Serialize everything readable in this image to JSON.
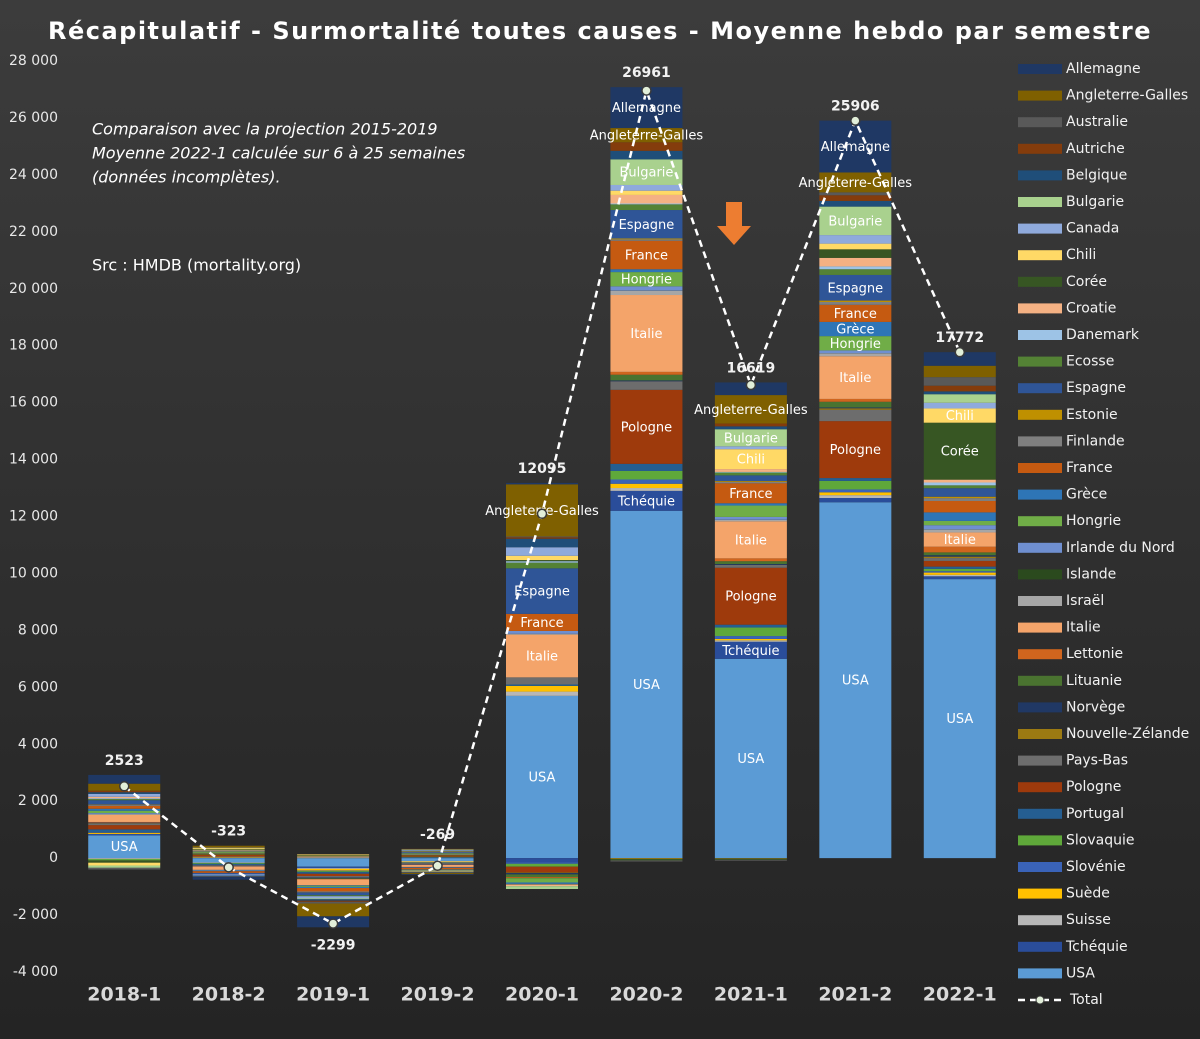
{
  "chart_data": {
    "type": "bar",
    "stacked": true,
    "title": "Récapitulatif - Surmortalité toutes causes - Moyenne hebdo par semestre",
    "annotations": [
      "Comparaison avec la projection 2015-2019",
      "Moyenne 2022-1 calculée sur 6 à 25 semaines",
      "(données incomplètes).",
      "Src : HMDB (mortality.org)"
    ],
    "categories": [
      "2018-1",
      "2018-2",
      "2019-1",
      "2019-2",
      "2020-1",
      "2020-2",
      "2021-1",
      "2021-2",
      "2022-1"
    ],
    "ylim": [
      -4000,
      28000
    ],
    "yticks": [
      {
        "value": -4000,
        "label": "-4 000"
      },
      {
        "value": -2000,
        "label": "-2 000"
      },
      0,
      {
        "value": 2000,
        "label": "2 000"
      },
      {
        "value": 4000,
        "label": "4 000"
      },
      {
        "value": 6000,
        "label": "6 000"
      },
      {
        "value": 8000,
        "label": "8 000"
      },
      {
        "value": 10000,
        "label": "10 000"
      },
      {
        "value": 12000,
        "label": "12 000"
      },
      {
        "value": 14000,
        "label": "14 000"
      },
      {
        "value": 16000,
        "label": "16 000"
      },
      {
        "value": 18000,
        "label": "18 000"
      },
      {
        "value": 20000,
        "label": "20 000"
      },
      {
        "value": 22000,
        "label": "22 000"
      },
      {
        "value": 24000,
        "label": "24 000"
      },
      {
        "value": 26000,
        "label": "26 000"
      },
      {
        "value": 28000,
        "label": "28 000"
      }
    ],
    "grid": false,
    "legend": "right",
    "series": [
      {
        "name": "Allemagne",
        "color": "#1f3864",
        "values": [
          308,
          -93,
          -384,
          -29,
          50,
          1436,
          444,
          1821,
          477
        ]
      },
      {
        "name": "Angleterre-Galles",
        "color": "#7f6000",
        "values": [
          250,
          50,
          -450,
          -40,
          1830,
          500,
          1000,
          700,
          400
        ]
      },
      {
        "name": "Australie",
        "color": "#595959",
        "values": [
          -60,
          -25,
          -60,
          -30,
          30,
          -40,
          -30,
          100,
          300
        ]
      },
      {
        "name": "Autriche",
        "color": "#843c0c",
        "values": [
          50,
          15,
          -40,
          15,
          50,
          300,
          100,
          200,
          200
        ]
      },
      {
        "name": "Belgique",
        "color": "#1f4e79",
        "values": [
          60,
          -30,
          -50,
          -20,
          300,
          300,
          100,
          200,
          100
        ]
      },
      {
        "name": "Bulgarie",
        "color": "#a9d18e",
        "values": [
          -80,
          20,
          -30,
          20,
          -100,
          900,
          600,
          1000,
          300
        ]
      },
      {
        "name": "Canada",
        "color": "#8faadc",
        "values": [
          100,
          -40,
          -60,
          30,
          300,
          200,
          100,
          300,
          200
        ]
      },
      {
        "name": "Chili",
        "color": "#ffd966",
        "values": [
          -100,
          40,
          30,
          -30,
          150,
          150,
          700,
          200,
          500
        ]
      },
      {
        "name": "Corée",
        "color": "#375623",
        "values": [
          -60,
          30,
          40,
          30,
          40,
          -50,
          -40,
          300,
          2000
        ]
      },
      {
        "name": "Croatie",
        "color": "#f4b183",
        "values": [
          50,
          20,
          30,
          20,
          -50,
          300,
          100,
          300,
          100
        ]
      },
      {
        "name": "Danemark",
        "color": "#9dc3e6",
        "values": [
          30,
          15,
          -20,
          -15,
          50,
          30,
          20,
          100,
          100
        ]
      },
      {
        "name": "Ecosse",
        "color": "#548235",
        "values": [
          40,
          10,
          -30,
          -20,
          200,
          200,
          100,
          200,
          100
        ]
      },
      {
        "name": "Espagne",
        "color": "#2f5597",
        "values": [
          150,
          -50,
          -100,
          40,
          1600,
          1000,
          200,
          900,
          300
        ]
      },
      {
        "name": "Estonie",
        "color": "#bf9000",
        "values": [
          10,
          5,
          -5,
          5,
          -10,
          30,
          30,
          50,
          50
        ]
      },
      {
        "name": "Finlande",
        "color": "#7f7f7f",
        "values": [
          40,
          20,
          -30,
          -20,
          -20,
          50,
          50,
          100,
          100
        ]
      },
      {
        "name": "France",
        "color": "#c55a11",
        "values": [
          100,
          -60,
          -120,
          -50,
          600,
          1000,
          700,
          600,
          400
        ]
      },
      {
        "name": "Grèce",
        "color": "#2e75b6",
        "values": [
          70,
          -30,
          -40,
          -20,
          -50,
          100,
          80,
          500,
          300
        ]
      },
      {
        "name": "Hongrie",
        "color": "#70ad47",
        "values": [
          80,
          40,
          -40,
          30,
          -150,
          500,
          400,
          500,
          150
        ]
      },
      {
        "name": "Irlande du Nord",
        "color": "#6f8fd0",
        "values": [
          30,
          10,
          -20,
          -10,
          100,
          150,
          100,
          100,
          150
        ]
      },
      {
        "name": "Islande",
        "color": "#2b4a1e",
        "values": [
          5,
          5,
          -5,
          5,
          -5,
          5,
          5,
          5,
          5
        ]
      },
      {
        "name": "Israël",
        "color": "#a6a6a6",
        "values": [
          30,
          -20,
          20,
          15,
          30,
          150,
          50,
          100,
          100
        ]
      },
      {
        "name": "Italie",
        "color": "#f4a46a",
        "values": [
          250,
          -120,
          -200,
          -80,
          1500,
          2700,
          1300,
          1500,
          500
        ]
      },
      {
        "name": "Lettonie",
        "color": "#d0651e",
        "values": [
          20,
          10,
          -15,
          10,
          -30,
          100,
          100,
          100,
          200
        ]
      },
      {
        "name": "Lituanie",
        "color": "#4a7330",
        "values": [
          -30,
          15,
          -20,
          10,
          -100,
          200,
          100,
          200,
          100
        ]
      },
      {
        "name": "Norvège",
        "color": "#203864",
        "values": [
          20,
          -20,
          -30,
          -20,
          -50,
          30,
          30,
          30,
          50
        ]
      },
      {
        "name": "Nouvelle-Zélande",
        "color": "#9c7a12",
        "values": [
          10,
          10,
          10,
          5,
          -20,
          -30,
          -20,
          50,
          50
        ]
      },
      {
        "name": "Pays-Bas",
        "color": "#6d6d6d",
        "values": [
          60,
          -30,
          -50,
          -30,
          250,
          300,
          100,
          400,
          100
        ]
      },
      {
        "name": "Pologne",
        "color": "#9e3a0c",
        "values": [
          150,
          60,
          -80,
          40,
          -200,
          2600,
          2000,
          2000,
          200
        ]
      },
      {
        "name": "Portugal",
        "color": "#255e91",
        "values": [
          100,
          -40,
          -60,
          -30,
          50,
          250,
          100,
          100,
          80
        ]
      },
      {
        "name": "Slovaquie",
        "color": "#5fa83a",
        "values": [
          -40,
          -30,
          -30,
          20,
          -100,
          300,
          300,
          300,
          80
        ]
      },
      {
        "name": "Slovénie",
        "color": "#3a63b8",
        "values": [
          20,
          10,
          -20,
          10,
          -50,
          150,
          100,
          100,
          50
        ]
      },
      {
        "name": "Suède",
        "color": "#ffc000",
        "values": [
          40,
          30,
          -60,
          -30,
          200,
          150,
          50,
          100,
          80
        ]
      },
      {
        "name": "Suisse",
        "color": "#b7b7b7",
        "values": [
          -30,
          -20,
          -30,
          -20,
          150,
          100,
          50,
          100,
          50
        ]
      },
      {
        "name": "Tchéquie",
        "color": "#2a4d9a",
        "values": [
          50,
          20,
          -50,
          20,
          -150,
          700,
          600,
          150,
          100
        ]
      },
      {
        "name": "USA",
        "color": "#5b9bd5",
        "values": [
          800,
          -150,
          -300,
          -100,
          5700,
          12200,
          7000,
          12500,
          9800
        ]
      },
      {
        "name": "Total",
        "type": "line",
        "color": "#ffffff",
        "values": [
          2523,
          -323,
          -2299,
          -269,
          12095,
          26961,
          16619,
          25906,
          17772
        ]
      }
    ]
  }
}
